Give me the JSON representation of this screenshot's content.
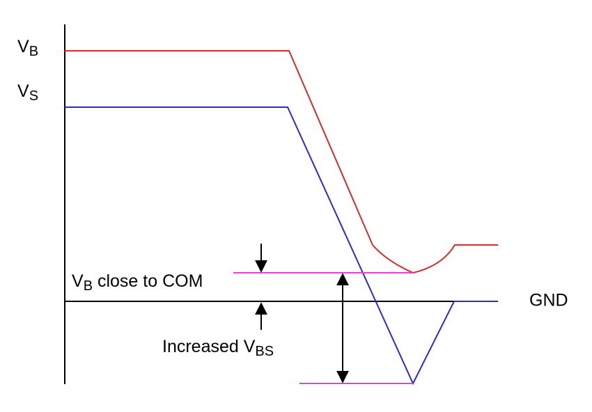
{
  "labels": {
    "vb": {
      "main": "V",
      "sub": "B"
    },
    "vs": {
      "main": "V",
      "sub": "S"
    },
    "vb_close": {
      "main": "V",
      "sub": "B",
      "rest": " close to COM"
    },
    "gnd": "GND",
    "increased": {
      "main": "Increased V",
      "sub": "BS"
    }
  }
}
